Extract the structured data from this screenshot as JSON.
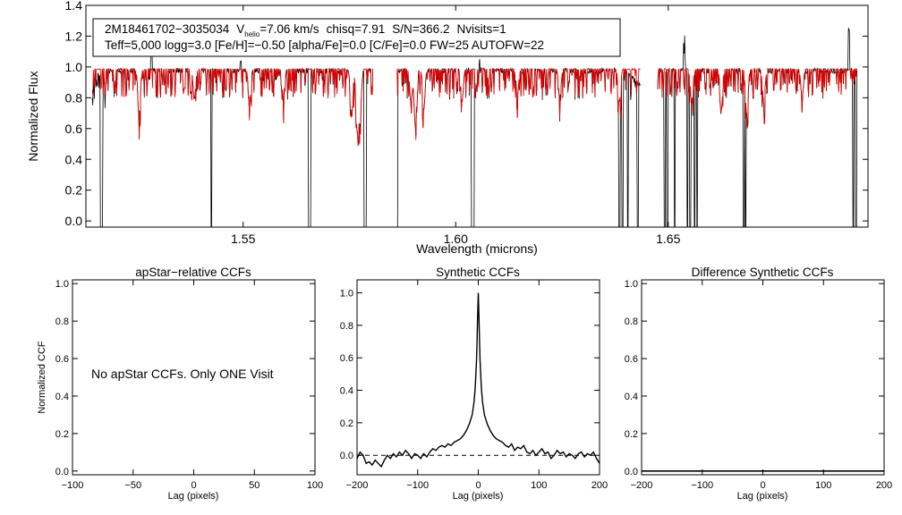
{
  "chart_data": [
    {
      "type": "line",
      "title": "",
      "xlabel": "Wavelength (microns)",
      "ylabel": "Normalized Flux",
      "xlim": [
        1.513,
        1.697
      ],
      "ylim": [
        -0.04,
        1.4
      ],
      "x_ticks": [
        1.55,
        1.6,
        1.65
      ],
      "x_tick_labels": [
        "1.55",
        "1.60",
        "1.65"
      ],
      "y_ticks": [
        0.0,
        0.2,
        0.4,
        0.6,
        0.8,
        1.0,
        1.2,
        1.4
      ],
      "y_tick_labels": [
        "0.0",
        "0.2",
        "0.4",
        "0.6",
        "0.8",
        "1.0",
        "1.2",
        "1.4"
      ],
      "info_line1": {
        "star": "2M18461702−3035034",
        "vhelio_pre": "V",
        "vhelio_sub": "helio",
        "vhelio_val": "=7.06 km/s",
        "chisq": "chisq=7.91",
        "snr": "S/N=366.2",
        "nvisits": "Nvisits=1"
      },
      "info_line2": "Teff=5,000 logg=3.0 [Fe/H]=−0.50 [alpha/Fe]=0.0 [C/Fe]=0.0 FW=25 AUTOFW=22",
      "chip_ranges": [
        [
          1.5145,
          1.5805
        ],
        [
          1.5862,
          1.6435
        ],
        [
          1.6475,
          1.6945
        ]
      ],
      "series": [
        {
          "name": "Observed spectrum",
          "color": "#000000",
          "continuum": 0.975
        },
        {
          "name": "Best-fit synthetic",
          "color": "#e00000",
          "continuum": 0.985
        }
      ],
      "deep_lines": [
        1.5165,
        1.5168,
        1.5425,
        1.5655,
        1.5658,
        1.5785,
        1.5788,
        1.5862,
        1.6038,
        1.6042,
        1.6385,
        1.6392,
        1.6405,
        1.6428,
        1.6492,
        1.6498,
        1.6515,
        1.6545,
        1.6552,
        1.6562,
        1.6568,
        1.6678,
        1.6682,
        1.6935,
        1.6942
      ],
      "absorption_features": [
        {
          "x": 1.5255,
          "depth": 0.3
        },
        {
          "x": 1.5385,
          "depth": 0.18
        },
        {
          "x": 1.5515,
          "depth": 0.2
        },
        {
          "x": 1.5595,
          "depth": 0.18
        },
        {
          "x": 1.5755,
          "depth": 0.3
        },
        {
          "x": 1.5768,
          "depth": 0.38
        },
        {
          "x": 1.5775,
          "depth": 0.34
        },
        {
          "x": 1.5895,
          "depth": 0.22
        },
        {
          "x": 1.5905,
          "depth": 0.35
        },
        {
          "x": 1.5925,
          "depth": 0.25
        },
        {
          "x": 1.6015,
          "depth": 0.2
        },
        {
          "x": 1.6145,
          "depth": 0.16
        },
        {
          "x": 1.6245,
          "depth": 0.18
        },
        {
          "x": 1.6385,
          "depth": 0.2
        },
        {
          "x": 1.6555,
          "depth": 0.2
        },
        {
          "x": 1.6625,
          "depth": 0.25
        },
        {
          "x": 1.6685,
          "depth": 0.3
        },
        {
          "x": 1.6725,
          "depth": 0.22
        },
        {
          "x": 1.6815,
          "depth": 0.18
        }
      ],
      "emission_spikes": [
        {
          "x": 1.5285,
          "peak": 1.14
        },
        {
          "x": 1.5495,
          "peak": 1.06
        },
        {
          "x": 1.6055,
          "peak": 1.06
        },
        {
          "x": 1.6538,
          "peak": 1.24
        },
        {
          "x": 1.6925,
          "peak": 1.26
        }
      ]
    },
    {
      "type": "line",
      "title": "apStar−relative CCFs",
      "xlabel": "Lag (pixels)",
      "ylabel": "Normalized CCF",
      "xlim": [
        -100,
        100
      ],
      "ylim": [
        -0.02,
        1.02
      ],
      "x_ticks": [
        -100,
        -50,
        0,
        50,
        100
      ],
      "x_tick_labels": [
        "−100",
        "−50",
        "0",
        "50",
        "100"
      ],
      "y_ticks": [
        0.0,
        0.2,
        0.4,
        0.6,
        0.8,
        1.0
      ],
      "y_tick_labels": [
        "0.0",
        "0.2",
        "0.4",
        "0.6",
        "0.8",
        "1.0"
      ],
      "annotation": "No apStar CCFs.  Only ONE Visit",
      "series": []
    },
    {
      "type": "line",
      "title": "Synthetic CCFs",
      "xlabel": "Lag (pixels)",
      "ylabel": "",
      "xlim": [
        -200,
        200
      ],
      "ylim": [
        -0.12,
        1.08
      ],
      "x_ticks": [
        -200,
        -100,
        0,
        100,
        200
      ],
      "x_tick_labels": [
        "−200",
        "−100",
        "0",
        "100",
        "200"
      ],
      "y_ticks": [
        0.0,
        0.2,
        0.4,
        0.6,
        0.8,
        1.0
      ],
      "y_tick_labels": [
        "0.0",
        "0.2",
        "0.4",
        "0.6",
        "0.8",
        "1.0"
      ],
      "zero_line": {
        "y": 0.0,
        "style": "dashed"
      },
      "series": [
        {
          "name": "CCF",
          "color": "#000000",
          "x": [
            -200,
            -195,
            -190,
            -185,
            -180,
            -175,
            -170,
            -165,
            -160,
            -155,
            -150,
            -145,
            -140,
            -135,
            -130,
            -125,
            -120,
            -115,
            -110,
            -105,
            -100,
            -95,
            -90,
            -85,
            -80,
            -75,
            -70,
            -65,
            -60,
            -55,
            -50,
            -45,
            -40,
            -35,
            -30,
            -25,
            -20,
            -15,
            -10,
            -7,
            -5,
            -3,
            -2,
            -1,
            0,
            1,
            2,
            3,
            5,
            7,
            10,
            15,
            20,
            25,
            30,
            35,
            40,
            45,
            50,
            55,
            60,
            65,
            70,
            75,
            80,
            85,
            90,
            95,
            100,
            105,
            110,
            115,
            120,
            125,
            130,
            135,
            140,
            145,
            150,
            155,
            160,
            165,
            170,
            175,
            180,
            185,
            190,
            195,
            200
          ],
          "y": [
            -0.02,
            0.02,
            0.0,
            -0.05,
            -0.04,
            -0.06,
            -0.03,
            -0.05,
            -0.07,
            -0.03,
            0.0,
            -0.02,
            0.01,
            -0.01,
            0.02,
            0.0,
            0.03,
            0.01,
            -0.02,
            0.01,
            0.0,
            -0.02,
            0.01,
            -0.01,
            0.02,
            0.04,
            0.03,
            0.05,
            0.06,
            0.05,
            0.07,
            0.06,
            0.08,
            0.09,
            0.1,
            0.12,
            0.15,
            0.19,
            0.25,
            0.33,
            0.42,
            0.58,
            0.7,
            0.86,
            1.0,
            0.86,
            0.7,
            0.58,
            0.42,
            0.33,
            0.25,
            0.19,
            0.15,
            0.12,
            0.1,
            0.09,
            0.08,
            0.06,
            0.05,
            0.07,
            0.03,
            0.05,
            0.04,
            0.06,
            0.02,
            0.01,
            0.03,
            0.0,
            0.02,
            0.04,
            0.01,
            0.02,
            -0.02,
            0.0,
            0.03,
            0.01,
            0.02,
            -0.01,
            0.01,
            0.0,
            -0.02,
            0.01,
            0.02,
            -0.01,
            0.01,
            0.0,
            0.02,
            -0.02,
            -0.05
          ]
        }
      ]
    },
    {
      "type": "line",
      "title": "Difference Synthetic CCFs",
      "xlabel": "Lag (pixels)",
      "ylabel": "",
      "xlim": [
        -200,
        200
      ],
      "ylim": [
        -0.02,
        1.02
      ],
      "x_ticks": [
        -200,
        -100,
        0,
        100,
        200
      ],
      "x_tick_labels": [
        "−200",
        "−100",
        "0",
        "100",
        "200"
      ],
      "y_ticks": [
        0.0,
        0.2,
        0.4,
        0.6,
        0.8,
        1.0
      ],
      "y_tick_labels": [
        "0.0",
        "0.2",
        "0.4",
        "0.6",
        "0.8",
        "1.0"
      ],
      "series": [
        {
          "name": "Difference CCF",
          "color": "#000000",
          "x": [
            -200,
            200
          ],
          "y": [
            0.0,
            0.0
          ]
        }
      ]
    }
  ]
}
